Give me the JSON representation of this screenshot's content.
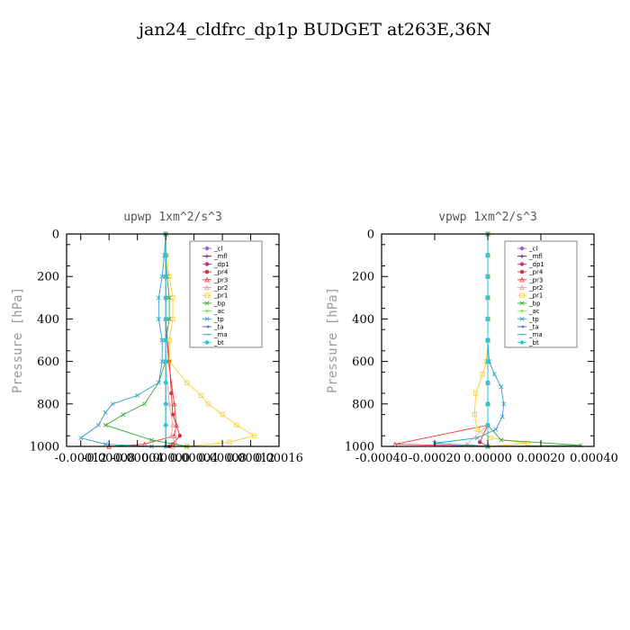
{
  "figure_title": "jan24_cldfrc_dp1p  BUDGET at263E,36N",
  "chart_data": [
    {
      "type": "line",
      "title": "upwp   1xm^2/s^3",
      "ylabel": "Pressure [hPa]",
      "xlim": [
        -0.00014,
        0.00016
      ],
      "ylim": [
        0,
        1000
      ],
      "y_inverted": true,
      "xtick_values": [
        -0.00012,
        -8e-05,
        -4e-05,
        0.0,
        4e-05,
        8e-05,
        0.00012,
        0.00016
      ],
      "xtick_labels": [
        "-0.00012",
        "-0.00008",
        "-0.00004",
        "0.00000",
        "0.00004",
        "0.00008",
        "0.00012",
        "0.00016"
      ],
      "ytick_values": [
        0,
        200,
        400,
        600,
        800,
        1000
      ],
      "ytick_labels": [
        "0",
        "200",
        "400",
        "600",
        "800",
        "1000"
      ],
      "legend_position": "top-right",
      "series": [
        {
          "name": "_cl",
          "color": "#9966cc",
          "marker": "dot",
          "x": [
            0,
            0,
            0,
            0,
            0,
            0,
            0,
            0,
            0,
            0,
            0
          ],
          "y": [
            0,
            100,
            200,
            300,
            400,
            500,
            600,
            700,
            800,
            900,
            1000
          ]
        },
        {
          "name": "_mfl",
          "color": "#660066",
          "marker": "plus",
          "x": [
            0,
            0,
            0,
            0,
            0,
            0,
            0,
            0,
            0,
            0,
            0
          ],
          "y": [
            0,
            100,
            200,
            300,
            400,
            500,
            600,
            700,
            800,
            900,
            1000
          ]
        },
        {
          "name": "_dp1",
          "color": "#cc3366",
          "marker": "dot",
          "x": [
            0,
            0,
            0,
            0,
            0,
            0,
            0,
            0,
            0,
            0,
            0
          ],
          "y": [
            0,
            100,
            200,
            300,
            400,
            500,
            600,
            700,
            800,
            900,
            1000
          ]
        },
        {
          "name": "_pr4",
          "color": "#cc3344",
          "marker": "dot",
          "x": [
            0,
            0,
            0,
            0,
            0,
            5e-06,
            8e-06,
            1e-05,
            2e-05,
            1e-05,
            5e-06
          ],
          "y": [
            0,
            100,
            200,
            300,
            400,
            600,
            750,
            850,
            950,
            990,
            1000
          ]
        },
        {
          "name": "_pr3",
          "color": "#ff3333",
          "marker": "tri",
          "x": [
            0,
            0,
            0,
            0,
            0,
            4e-06,
            1.2e-05,
            1.5e-05,
            1.2e-05,
            -3e-05,
            -8e-05
          ],
          "y": [
            0,
            100,
            200,
            300,
            400,
            600,
            800,
            900,
            950,
            990,
            1000
          ]
        },
        {
          "name": "_pr2",
          "color": "#ff9999",
          "marker": "tri",
          "x": [
            0,
            0,
            0,
            0,
            0,
            0,
            5e-06,
            1e-05,
            8e-06,
            1.5e-05,
            1e-05
          ],
          "y": [
            0,
            100,
            200,
            300,
            400,
            600,
            800,
            900,
            950,
            990,
            1000
          ]
        },
        {
          "name": "_pr1",
          "color": "#ffcc33",
          "marker": "square",
          "x": [
            0,
            1e-06,
            5e-06,
            1e-05,
            1e-05,
            5e-06,
            5e-06,
            3e-05,
            5e-05,
            6e-05,
            8e-05,
            0.0001,
            0.000125,
            9e-05,
            3e-05
          ],
          "y": [
            0,
            100,
            200,
            300,
            400,
            500,
            600,
            700,
            760,
            800,
            850,
            900,
            950,
            980,
            1000
          ]
        },
        {
          "name": "_bp",
          "color": "#33aa33",
          "marker": "x",
          "x": [
            0,
            0,
            2e-06,
            5e-06,
            5e-06,
            0,
            0,
            -1e-05,
            -3e-05,
            -6e-05,
            -8.5e-05,
            -2e-05,
            3e-05
          ],
          "y": [
            0,
            100,
            200,
            300,
            400,
            500,
            600,
            700,
            800,
            850,
            900,
            970,
            1000
          ]
        },
        {
          "name": "_ac",
          "color": "#88ee44",
          "marker": "diamond",
          "x": [
            0,
            0,
            0,
            0,
            0,
            0,
            0,
            0,
            0,
            0,
            0
          ],
          "y": [
            0,
            100,
            200,
            300,
            400,
            500,
            600,
            700,
            800,
            900,
            1000
          ]
        },
        {
          "name": "_tp",
          "color": "#3399cc",
          "marker": "x",
          "x": [
            0,
            -2e-06,
            -5e-06,
            -1e-05,
            -1e-05,
            -5e-06,
            -5e-06,
            -1e-05,
            -4e-05,
            -7.5e-05,
            -8.5e-05,
            -9.5e-05,
            -0.00012,
            -8.5e-05,
            -2e-05
          ],
          "y": [
            0,
            100,
            200,
            300,
            400,
            500,
            600,
            700,
            760,
            800,
            840,
            900,
            960,
            990,
            1000
          ]
        },
        {
          "name": "_ta",
          "color": "#3355cc",
          "marker": "arrow",
          "x": [
            0,
            0,
            0,
            0,
            0,
            0,
            0,
            0,
            0,
            0,
            0
          ],
          "y": [
            0,
            100,
            200,
            300,
            400,
            500,
            600,
            700,
            800,
            900,
            1000
          ]
        },
        {
          "name": "_ma",
          "color": "#3399cc",
          "marker": "dash",
          "x": [
            0,
            0,
            0,
            0,
            0,
            0,
            0,
            0,
            0,
            0,
            0
          ],
          "y": [
            0,
            100,
            200,
            300,
            400,
            500,
            600,
            700,
            800,
            900,
            1000
          ]
        },
        {
          "name": "_bt",
          "color": "#22ccdd",
          "marker": "hex",
          "x": [
            0,
            0,
            0,
            0,
            0,
            0,
            0,
            0,
            0,
            0,
            0
          ],
          "y": [
            0,
            100,
            200,
            300,
            400,
            500,
            600,
            700,
            800,
            900,
            1000
          ]
        }
      ]
    },
    {
      "type": "line",
      "title": "vpwp   1xm^2/s^3",
      "ylabel": "Pressure [hPa]",
      "xlim": [
        -0.0004,
        0.0004
      ],
      "ylim": [
        0,
        1000
      ],
      "y_inverted": true,
      "xtick_values": [
        -0.0004,
        -0.0002,
        0.0,
        0.0002,
        0.0004
      ],
      "xtick_labels": [
        "-0.00040",
        "-0.00020",
        "0.00000",
        "0.00020",
        "0.00040"
      ],
      "ytick_values": [
        0,
        200,
        400,
        600,
        800,
        1000
      ],
      "ytick_labels": [
        "0",
        "200",
        "400",
        "600",
        "800",
        "1000"
      ],
      "legend_position": "top-right",
      "series": [
        {
          "name": "_cl",
          "color": "#9966cc",
          "marker": "dot",
          "x": [
            0,
            0,
            0,
            0,
            0,
            0,
            0,
            0,
            0,
            0,
            0
          ],
          "y": [
            0,
            100,
            200,
            300,
            400,
            500,
            600,
            700,
            800,
            900,
            1000
          ]
        },
        {
          "name": "_mfl",
          "color": "#660066",
          "marker": "plus",
          "x": [
            0,
            0,
            0,
            0,
            0,
            0,
            0,
            0,
            0,
            0,
            0
          ],
          "y": [
            0,
            100,
            200,
            300,
            400,
            500,
            600,
            700,
            800,
            900,
            1000
          ]
        },
        {
          "name": "_dp1",
          "color": "#cc3366",
          "marker": "dot",
          "x": [
            0,
            0,
            0,
            0,
            0,
            0,
            0,
            0,
            0,
            0,
            0
          ],
          "y": [
            0,
            100,
            200,
            300,
            400,
            500,
            600,
            700,
            800,
            900,
            1000
          ]
        },
        {
          "name": "_pr4",
          "color": "#cc3344",
          "marker": "dot",
          "x": [
            0,
            0,
            0,
            0,
            0,
            0,
            0,
            0,
            0,
            0,
            -3e-05,
            0
          ],
          "y": [
            0,
            100,
            200,
            300,
            400,
            500,
            600,
            700,
            800,
            900,
            980,
            1000
          ]
        },
        {
          "name": "_pr3",
          "color": "#ff3333",
          "marker": "tri",
          "x": [
            0,
            0,
            0,
            0,
            0,
            0,
            0,
            0,
            0,
            0,
            -0.00035,
            0
          ],
          "y": [
            0,
            100,
            200,
            300,
            400,
            500,
            600,
            700,
            800,
            900,
            990,
            1000
          ]
        },
        {
          "name": "_pr2",
          "color": "#ff9999",
          "marker": "tri",
          "x": [
            0,
            0,
            0,
            0,
            0,
            0,
            0,
            0,
            0,
            0,
            -8e-05,
            0
          ],
          "y": [
            0,
            100,
            200,
            300,
            400,
            500,
            600,
            700,
            800,
            900,
            990,
            1000
          ]
        },
        {
          "name": "_pr1",
          "color": "#ffcc33",
          "marker": "square",
          "x": [
            0,
            0,
            0,
            0,
            0,
            0,
            -5e-06,
            -2e-05,
            -4.5e-05,
            -5e-05,
            -4e-05,
            1e-05,
            0.00015,
            0
          ],
          "y": [
            0,
            100,
            200,
            300,
            400,
            500,
            600,
            660,
            750,
            850,
            920,
            960,
            985,
            1000
          ]
        },
        {
          "name": "_bp",
          "color": "#33aa33",
          "marker": "x",
          "x": [
            0,
            0,
            0,
            0,
            0,
            0,
            0,
            0,
            0,
            0,
            5e-05,
            0.00035,
            0
          ],
          "y": [
            0,
            100,
            200,
            300,
            400,
            500,
            600,
            700,
            800,
            900,
            970,
            995,
            1000
          ]
        },
        {
          "name": "_ac",
          "color": "#88ee44",
          "marker": "diamond",
          "x": [
            0,
            0,
            0,
            0,
            0,
            0,
            0,
            0,
            0,
            0,
            0
          ],
          "y": [
            0,
            100,
            200,
            300,
            400,
            500,
            600,
            700,
            800,
            900,
            1000
          ]
        },
        {
          "name": "_tp",
          "color": "#3399cc",
          "marker": "x",
          "x": [
            0,
            0,
            0,
            0,
            0,
            0,
            5e-06,
            2.5e-05,
            5e-05,
            6e-05,
            5.5e-05,
            3e-05,
            -4e-05,
            -0.0002,
            0
          ],
          "y": [
            0,
            100,
            200,
            300,
            400,
            500,
            600,
            660,
            720,
            800,
            860,
            920,
            960,
            985,
            1000
          ]
        },
        {
          "name": "_ta",
          "color": "#3355cc",
          "marker": "arrow",
          "x": [
            0,
            0,
            0,
            0,
            0,
            0,
            0,
            0,
            0,
            0,
            0
          ],
          "y": [
            0,
            100,
            200,
            300,
            400,
            500,
            600,
            700,
            800,
            900,
            1000
          ]
        },
        {
          "name": "_ma",
          "color": "#3399cc",
          "marker": "dash",
          "x": [
            0,
            0,
            0,
            0,
            0,
            0,
            0,
            0,
            0,
            0,
            0
          ],
          "y": [
            0,
            100,
            200,
            300,
            400,
            500,
            600,
            700,
            800,
            900,
            1000
          ]
        },
        {
          "name": "_bt",
          "color": "#22ccdd",
          "marker": "hex",
          "x": [
            0,
            0,
            0,
            0,
            0,
            0,
            0,
            0,
            0,
            0,
            0
          ],
          "y": [
            0,
            100,
            200,
            300,
            400,
            500,
            600,
            700,
            800,
            900,
            1000
          ]
        }
      ]
    }
  ]
}
